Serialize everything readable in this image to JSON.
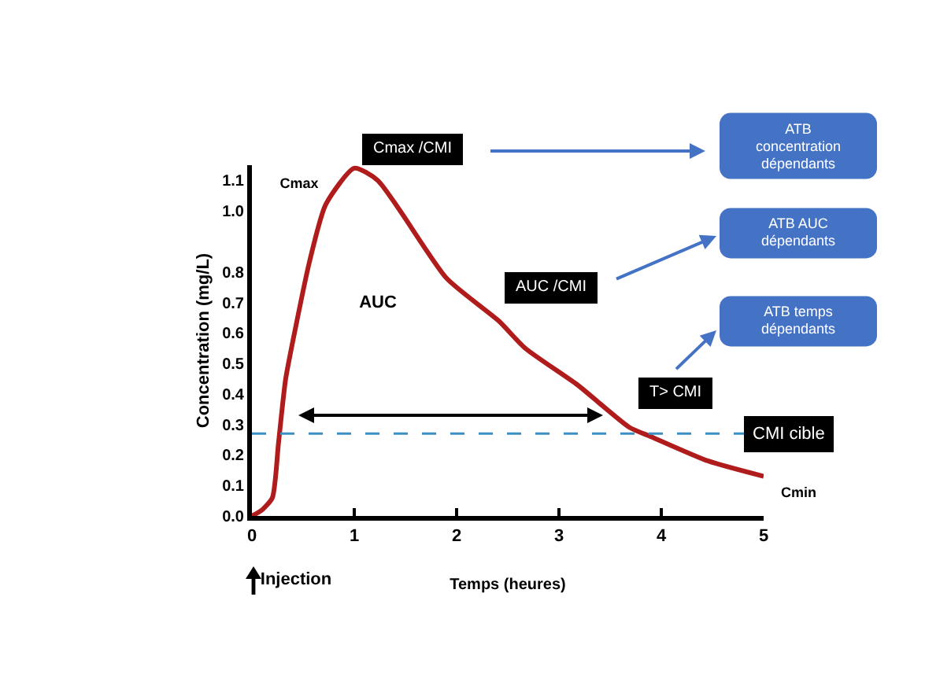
{
  "chart_data": {
    "type": "line",
    "xlabel": "Temps (heures)",
    "ylabel": "Concentration (mg/L)",
    "xlim": [
      0,
      5
    ],
    "xticks": [
      0,
      1,
      2,
      3,
      4,
      5
    ],
    "ylim": [
      0,
      1.15
    ],
    "yticks": [
      {
        "value": 0,
        "label": "0.0"
      },
      {
        "value": 0.1,
        "label": "0.1"
      },
      {
        "value": 0.2,
        "label": "0.2"
      },
      {
        "value": 0.3,
        "label": "0.3"
      },
      {
        "value": 0.4,
        "label": "0.4"
      },
      {
        "value": 0.5,
        "label": "0.5"
      },
      {
        "value": 0.6,
        "label": "0.6"
      },
      {
        "value": 0.7,
        "label": "0.7"
      },
      {
        "value": 0.8,
        "label": "0.8"
      },
      {
        "value": 1,
        "label": "1.0"
      },
      1.1
    ],
    "grid": false,
    "marker": "none",
    "line_style": "solid",
    "series": [
      {
        "color": "#b01c1c",
        "x": [
          0,
          0.1,
          0.2,
          0.26,
          0.33,
          0.44,
          0.56,
          0.72,
          1.0,
          1.23,
          1.9,
          2.41,
          2.67,
          3.18,
          3.69,
          3.9,
          4.46,
          5.0
        ],
        "values": [
          0,
          0.02,
          0.06,
          0.24,
          0.45,
          0.64,
          0.83,
          1.02,
          1.14,
          1.1,
          0.78,
          0.64,
          0.55,
          0.43,
          0.29,
          0.26,
          0.18,
          0.13
        ]
      }
    ],
    "ref_lines": [
      {
        "axis": "y",
        "value": 0.27,
        "label": "CMI cible",
        "color": "#3b8fc4",
        "line_style": "dashed"
      }
    ],
    "annotations": [
      "Cmax /CMI",
      "AUC /CMI",
      "T> CMI",
      "ATB\nconcentration\ndépendants",
      "ATB AUC\ndépendants",
      "ATB temps\ndépendants",
      "AUC",
      "Injection",
      "Cmax",
      {
        "text": "Cmin",
        "x": 5,
        "y": 0.13
      }
    ]
  }
}
